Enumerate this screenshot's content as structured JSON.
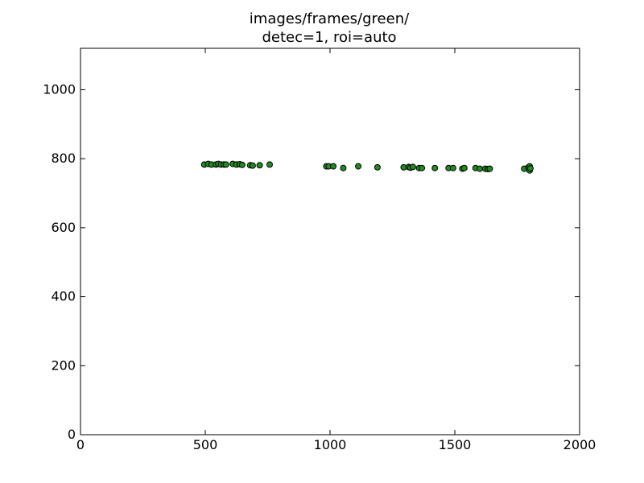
{
  "chart_data": {
    "type": "scatter",
    "title_lines": [
      "images/frames/green/",
      "detec=1, roi=auto"
    ],
    "xlabel": "",
    "ylabel": "",
    "xlim": [
      0,
      2000
    ],
    "ylim": [
      0,
      1120
    ],
    "x_ticks": [
      0,
      500,
      1000,
      1500,
      2000
    ],
    "y_ticks": [
      0,
      200,
      400,
      600,
      800,
      1000
    ],
    "grid": false,
    "marker_color": "#228b22",
    "marker_edge_color": "#000000",
    "series": [
      {
        "points": [
          [
            496,
            783
          ],
          [
            512,
            785
          ],
          [
            525,
            783
          ],
          [
            543,
            783
          ],
          [
            552,
            785
          ],
          [
            563,
            783
          ],
          [
            575,
            783
          ],
          [
            583,
            783
          ],
          [
            610,
            785
          ],
          [
            625,
            783
          ],
          [
            638,
            784
          ],
          [
            648,
            782
          ],
          [
            680,
            781
          ],
          [
            690,
            780
          ],
          [
            718,
            781
          ],
          [
            758,
            783
          ],
          [
            985,
            778
          ],
          [
            995,
            778
          ],
          [
            1013,
            778
          ],
          [
            1053,
            773
          ],
          [
            1113,
            778
          ],
          [
            1190,
            775
          ],
          [
            1295,
            775
          ],
          [
            1315,
            776
          ],
          [
            1322,
            774
          ],
          [
            1332,
            776
          ],
          [
            1357,
            773
          ],
          [
            1368,
            773
          ],
          [
            1420,
            773
          ],
          [
            1475,
            773
          ],
          [
            1493,
            773
          ],
          [
            1530,
            771
          ],
          [
            1538,
            773
          ],
          [
            1583,
            773
          ],
          [
            1600,
            771
          ],
          [
            1622,
            771
          ],
          [
            1632,
            770
          ],
          [
            1640,
            771
          ],
          [
            1778,
            771
          ],
          [
            1795,
            775
          ],
          [
            1800,
            778
          ],
          [
            1800,
            766
          ],
          [
            1803,
            772
          ]
        ]
      }
    ]
  }
}
